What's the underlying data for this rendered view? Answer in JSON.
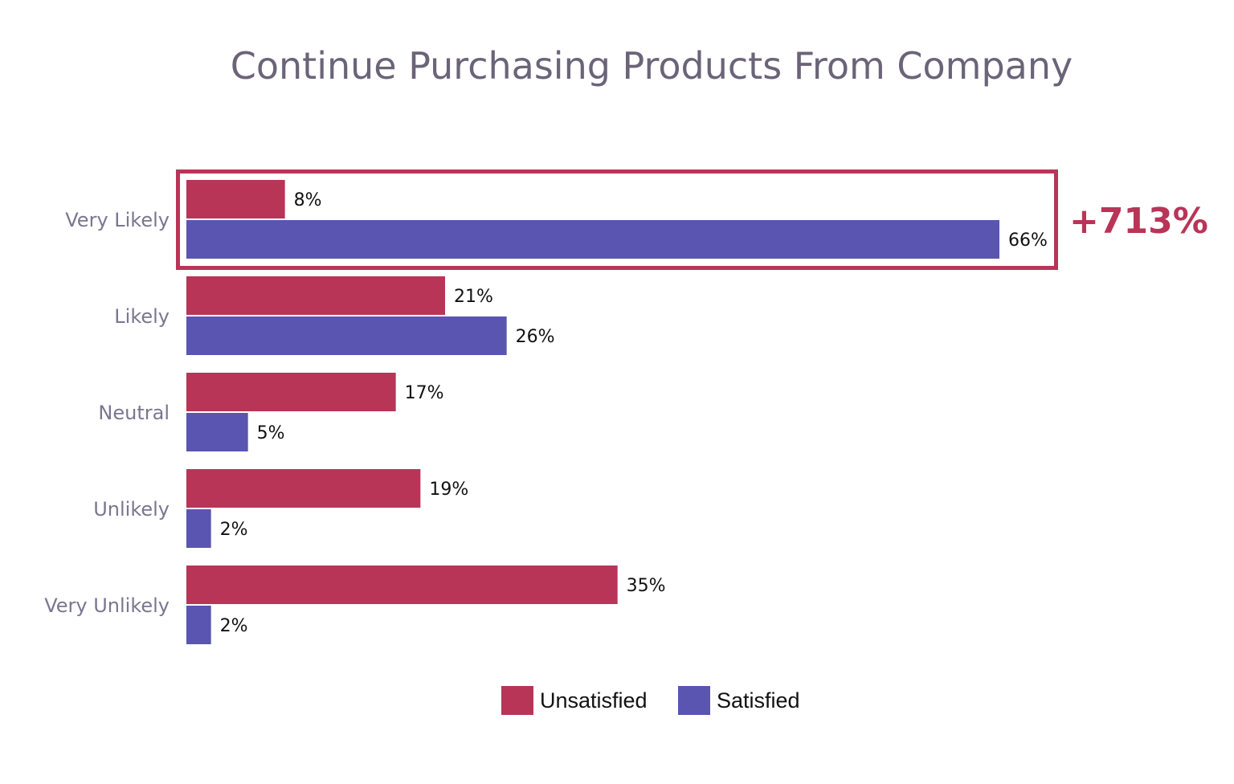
{
  "chart_data": {
    "type": "bar",
    "orientation": "horizontal",
    "title": "Continue Purchasing Products From Company",
    "categories": [
      "Very Likely",
      "Likely",
      "Neutral",
      "Unlikely",
      "Very Unlikely"
    ],
    "series": [
      {
        "name": "Unsatisfied",
        "color": "#b83558",
        "values": [
          8,
          21,
          17,
          19,
          35
        ],
        "labels": [
          "8%",
          "21%",
          "17%",
          "19%",
          "35%"
        ]
      },
      {
        "name": "Satisfied",
        "color": "#5a55b0",
        "values": [
          66,
          26,
          5,
          2,
          2
        ],
        "labels": [
          "66%",
          "26%",
          "5%",
          "2%",
          "2%"
        ]
      }
    ],
    "unit": "%",
    "xlim": [
      0,
      66
    ],
    "grid": false,
    "legend_position": "bottom-center",
    "highlight": {
      "category": "Very Likely",
      "callout": "+713%",
      "color": "#b83558"
    }
  }
}
